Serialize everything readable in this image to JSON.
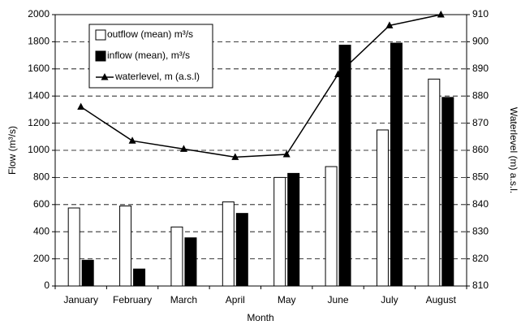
{
  "chart_data": {
    "type": "bar",
    "x_label": "Month",
    "y_label": "Flow (m³/s)",
    "y2_label": "Waterlevel (m) a.s.l.",
    "categories": [
      "January",
      "February",
      "March",
      "April",
      "May",
      "June",
      "July",
      "August"
    ],
    "series": [
      {
        "name": "outflow (mean) m³/s",
        "color": "#ffffff",
        "values": [
          575,
          590,
          435,
          620,
          800,
          880,
          1150,
          1525
        ]
      },
      {
        "name": "inflow (mean), m³/s",
        "color": "#000000",
        "values": [
          190,
          125,
          355,
          535,
          830,
          1775,
          1790,
          1390
        ]
      },
      {
        "name": "waterlevel, m (a.s.l)",
        "color": "#000000",
        "type": "line",
        "axis": "y2",
        "values": [
          876,
          863.5,
          860.5,
          857.5,
          858.5,
          888,
          906,
          910
        ]
      }
    ],
    "ylim": [
      0,
      2000
    ],
    "yticks": [
      0,
      200,
      400,
      600,
      800,
      1000,
      1200,
      1400,
      1600,
      1800,
      2000
    ],
    "y2lim": [
      810,
      910
    ],
    "y2ticks": [
      810,
      820,
      830,
      840,
      850,
      860,
      870,
      880,
      890,
      900,
      910
    ],
    "grid": true,
    "legend": "upper left"
  }
}
